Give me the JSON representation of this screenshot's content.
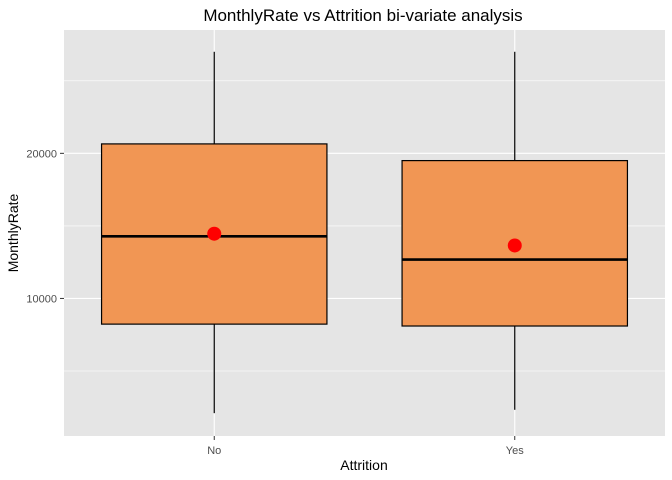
{
  "chart_data": {
    "type": "boxplot",
    "title": "MonthlyRate vs Attrition bi-variate analysis",
    "xlabel": "Attrition",
    "ylabel": "MonthlyRate",
    "categories": [
      "No",
      "Yes"
    ],
    "boxes": [
      {
        "category": "No",
        "min": 2094,
        "q1": 8230,
        "median": 14280,
        "q3": 20650,
        "max": 26999,
        "mean": 14460
      },
      {
        "category": "Yes",
        "min": 2326,
        "q1": 8100,
        "median": 12680,
        "q3": 19500,
        "max": 26999,
        "mean": 13650
      }
    ],
    "ylim": [
      520,
      28500
    ],
    "yticks": [
      10000,
      20000
    ],
    "yticklabels": [
      "10000",
      "20000"
    ],
    "grid": true,
    "colors": {
      "panel": "#e5e5e5",
      "grid_major": "#ffffff",
      "box_fill": "#f19654",
      "box_stroke": "#000000",
      "mean_point": "#ff0000"
    }
  }
}
